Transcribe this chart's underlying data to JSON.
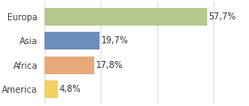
{
  "categories": [
    "Europa",
    "Asia",
    "Africa",
    "America"
  ],
  "values": [
    57.7,
    19.7,
    17.8,
    4.8
  ],
  "labels": [
    "57,7%",
    "19,7%",
    "17,8%",
    "4,8%"
  ],
  "bar_colors": [
    "#b5c98e",
    "#6c8ebf",
    "#e8a97a",
    "#f0d060"
  ],
  "background_color": "#ffffff",
  "xlim": [
    0,
    72
  ],
  "grid_color": "#e0e0e0",
  "label_fontsize": 7.0,
  "tick_fontsize": 7.0,
  "bar_height": 0.72
}
